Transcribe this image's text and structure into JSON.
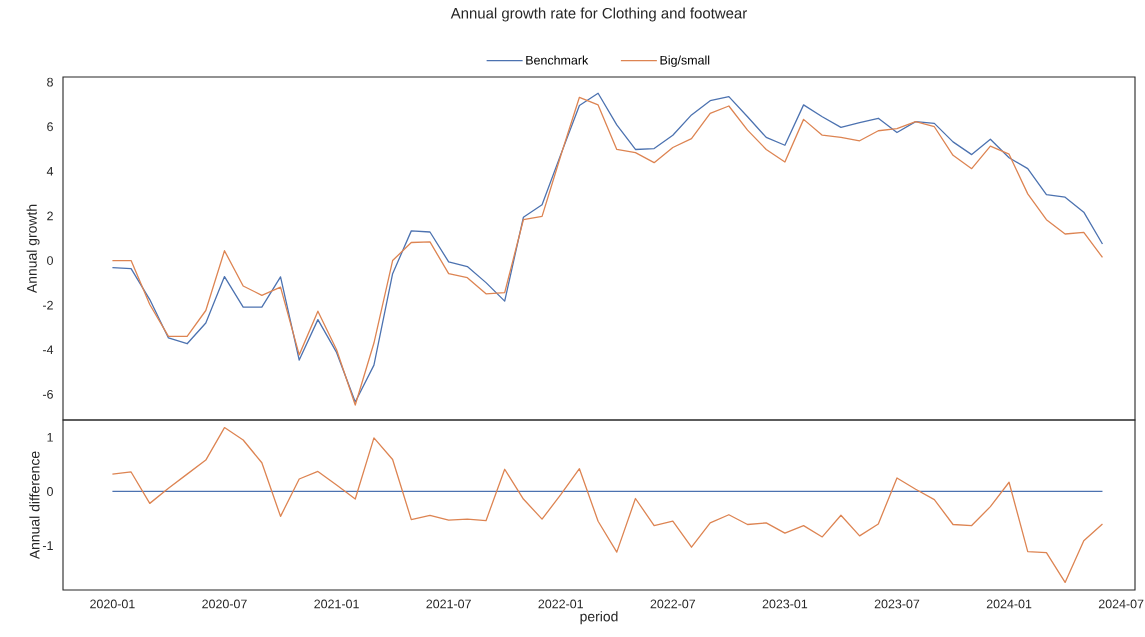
{
  "chart_data": [
    {
      "type": "line",
      "title": "Annual growth rate for Clothing and footwear",
      "ylabel": "Annual growth",
      "legend": "top",
      "tick_labels": "y",
      "x": [
        "2020-01",
        "2020-02",
        "2020-03",
        "2020-04",
        "2020-05",
        "2020-06",
        "2020-07",
        "2020-08",
        "2020-09",
        "2020-10",
        "2020-11",
        "2020-12",
        "2021-01",
        "2021-02",
        "2021-03",
        "2021-04",
        "2021-05",
        "2021-06",
        "2021-07",
        "2021-08",
        "2021-09",
        "2021-10",
        "2021-11",
        "2021-12",
        "2022-01",
        "2022-02",
        "2022-03",
        "2022-04",
        "2022-05",
        "2022-06",
        "2022-07",
        "2022-08",
        "2022-09",
        "2022-10",
        "2022-11",
        "2022-12",
        "2023-01",
        "2023-02",
        "2023-03",
        "2023-04",
        "2023-05",
        "2023-06",
        "2023-07",
        "2023-08",
        "2023-09",
        "2023-10",
        "2023-11",
        "2023-12",
        "2024-01",
        "2024-02",
        "2024-03",
        "2024-04",
        "2024-05",
        "2024-06"
      ],
      "xlim": [
        "2019-10-12",
        "2024-07-24"
      ],
      "ylim": [
        -7.15,
        8.23
      ],
      "yticks": [
        -6,
        -4,
        -2,
        0,
        2,
        4,
        6,
        8
      ],
      "series": [
        {
          "name": "Benchmark",
          "color": "#4c72b0",
          "values": [
            -0.32,
            -0.36,
            -1.75,
            -3.47,
            -3.73,
            -2.8,
            -0.72,
            -2.09,
            -2.09,
            -0.73,
            -4.46,
            -2.65,
            -4.12,
            -6.34,
            -4.69,
            -0.59,
            1.33,
            1.28,
            -0.06,
            -0.27,
            -0.99,
            -1.82,
            1.94,
            2.5,
            4.75,
            6.95,
            7.5,
            6.08,
            4.98,
            5.02,
            5.62,
            6.53,
            7.17,
            7.35,
            6.45,
            5.52,
            5.17,
            6.98,
            6.45,
            5.97,
            6.18,
            6.38,
            5.74,
            6.23,
            6.15,
            5.32,
            4.75,
            5.44,
            4.61,
            4.12,
            2.96,
            2.84,
            2.17,
            0.74
          ]
        },
        {
          "name": "Big/small",
          "color": "#dd8452",
          "values": [
            0.0,
            0.0,
            -1.97,
            -3.4,
            -3.4,
            -2.24,
            0.44,
            -1.14,
            -1.56,
            -1.19,
            -4.23,
            -2.27,
            -4.0,
            -6.48,
            -3.7,
            0.0,
            0.81,
            0.84,
            -0.59,
            -0.77,
            -1.49,
            -1.44,
            1.83,
            1.98,
            4.7,
            7.32,
            6.98,
            4.98,
            4.84,
            4.39,
            5.07,
            5.47,
            6.6,
            6.93,
            5.85,
            4.98,
            4.42,
            6.33,
            5.62,
            5.52,
            5.37,
            5.82,
            5.92,
            6.23,
            6.0,
            4.72,
            4.12,
            5.13,
            4.77,
            2.99,
            1.83,
            1.19,
            1.26,
            0.14
          ]
        }
      ]
    },
    {
      "type": "line",
      "ylabel": "Annual difference",
      "xlabel": "period",
      "x": [
        "2020-01",
        "2020-02",
        "2020-03",
        "2020-04",
        "2020-05",
        "2020-06",
        "2020-07",
        "2020-08",
        "2020-09",
        "2020-10",
        "2020-11",
        "2020-12",
        "2021-01",
        "2021-02",
        "2021-03",
        "2021-04",
        "2021-05",
        "2021-06",
        "2021-07",
        "2021-08",
        "2021-09",
        "2021-10",
        "2021-11",
        "2021-12",
        "2022-01",
        "2022-02",
        "2022-03",
        "2022-04",
        "2022-05",
        "2022-06",
        "2022-07",
        "2022-08",
        "2022-09",
        "2022-10",
        "2022-11",
        "2022-12",
        "2023-01",
        "2023-02",
        "2023-03",
        "2023-04",
        "2023-05",
        "2023-06",
        "2023-07",
        "2023-08",
        "2023-09",
        "2023-10",
        "2023-11",
        "2023-12",
        "2024-01",
        "2024-02",
        "2024-03",
        "2024-04",
        "2024-05",
        "2024-06"
      ],
      "xlim": [
        "2019-10-12",
        "2024-07-24"
      ],
      "xticks": [
        "2020-01",
        "2020-07",
        "2021-01",
        "2021-07",
        "2022-01",
        "2022-07",
        "2023-01",
        "2023-07",
        "2024-01",
        "2024-07"
      ],
      "ylim": [
        -1.82,
        1.32
      ],
      "yticks": [
        -1,
        0,
        1
      ],
      "series": [
        {
          "color": "#4c72b0",
          "values": [
            0,
            0,
            0,
            0,
            0,
            0,
            0,
            0,
            0,
            0,
            0,
            0,
            0,
            0,
            0,
            0,
            0,
            0,
            0,
            0,
            0,
            0,
            0,
            0,
            0,
            0,
            0,
            0,
            0,
            0,
            0,
            0,
            0,
            0,
            0,
            0,
            0,
            0,
            0,
            0,
            0,
            0,
            0,
            0,
            0,
            0,
            0,
            0,
            0,
            0,
            0,
            0,
            0,
            0
          ]
        },
        {
          "color": "#dd8452",
          "values": [
            0.32,
            0.36,
            -0.22,
            0.06,
            0.32,
            0.58,
            1.18,
            0.95,
            0.53,
            -0.46,
            0.23,
            0.37,
            0.12,
            -0.14,
            0.99,
            0.59,
            -0.52,
            -0.44,
            -0.53,
            -0.51,
            -0.54,
            0.41,
            -0.14,
            -0.51,
            -0.06,
            0.42,
            -0.55,
            -1.12,
            -0.13,
            -0.63,
            -0.55,
            -1.03,
            -0.58,
            -0.43,
            -0.61,
            -0.58,
            -0.77,
            -0.63,
            -0.84,
            -0.44,
            -0.82,
            -0.6,
            0.25,
            0.04,
            -0.15,
            -0.61,
            -0.63,
            -0.28,
            0.17,
            -1.11,
            -1.13,
            -1.68,
            -0.91,
            -0.6
          ]
        }
      ]
    }
  ]
}
